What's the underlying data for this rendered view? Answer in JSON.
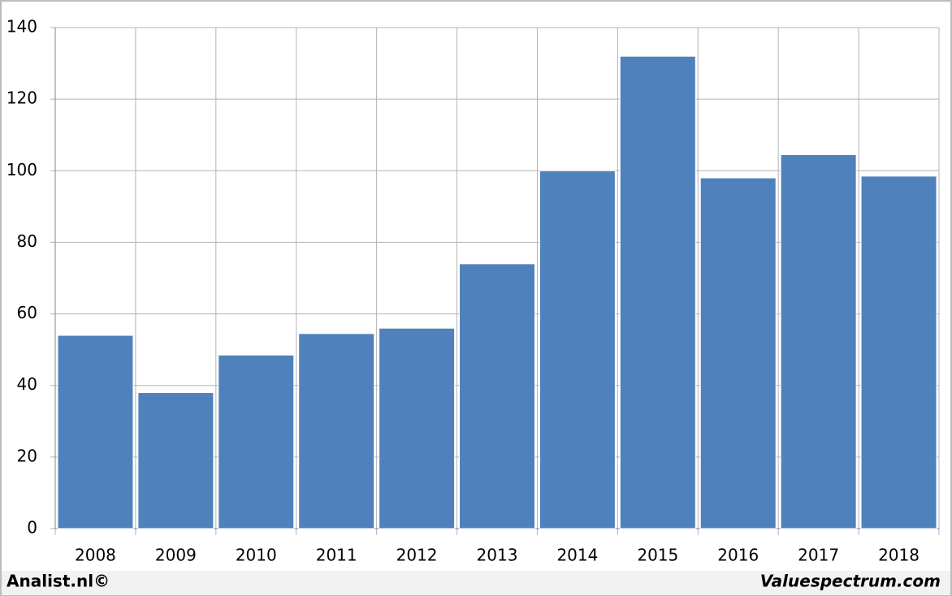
{
  "chart_data": {
    "type": "bar",
    "categories": [
      "2008",
      "2009",
      "2010",
      "2011",
      "2012",
      "2013",
      "2014",
      "2015",
      "2016",
      "2017",
      "2018"
    ],
    "values": [
      54,
      38,
      48.5,
      54.5,
      56,
      74,
      100,
      132,
      98,
      104.5,
      98.5
    ],
    "color": "#4f81bd",
    "ylim": [
      0,
      140
    ],
    "yticks": [
      0,
      20,
      40,
      60,
      80,
      100,
      120,
      140
    ],
    "grid": true,
    "source_left": "Analist.nl©",
    "source_right": "Valuespectrum.com"
  }
}
